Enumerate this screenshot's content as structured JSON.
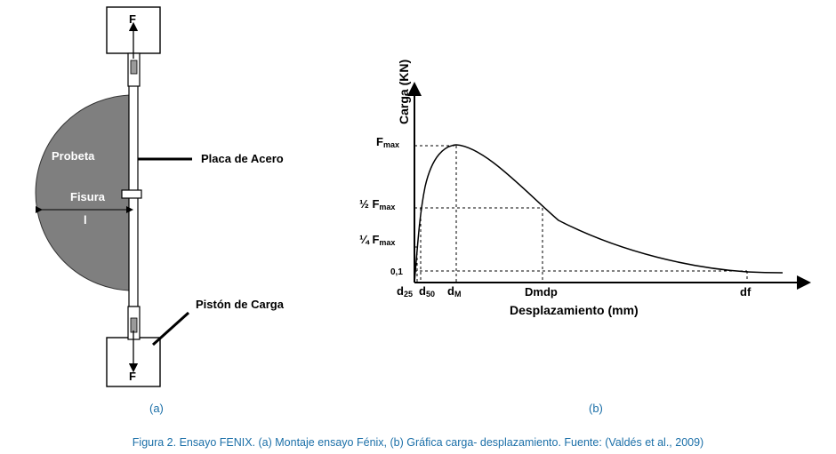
{
  "left_figure": {
    "force_top": "F",
    "force_bottom": "F",
    "probeta": "Probeta",
    "fisura": "Fisura",
    "length_symbol": "l",
    "placa": "Placa de Acero",
    "piston": "Pistón de Carga"
  },
  "right_figure": {
    "y_axis_label": "Carga (KN)",
    "x_axis_label": "Desplazamiento (mm)",
    "y_ticks": {
      "fmax": "F",
      "fmax_sub": "max",
      "half": "½ F",
      "half_sub": "max",
      "quarter": "¼ F",
      "quarter_sub": "max",
      "low": "0,1"
    },
    "x_ticks": {
      "d25": "d",
      "d25_sub": "25",
      "d50": "d",
      "d50_sub": "50",
      "dM": "d",
      "dM_sub": "M",
      "dmdp": "Dmdp",
      "df": "df"
    }
  },
  "captions": {
    "a": "(a)",
    "b": "(b)",
    "figure": "Figura 2. Ensayo FENIX. (a) Montaje ensayo Fénix, (b) Gráfica carga- desplazamiento. Fuente: (Valdés et al., 2009)"
  },
  "colors": {
    "probeta_fill": "#7f7f7f",
    "caption": "#1b6fa8"
  }
}
